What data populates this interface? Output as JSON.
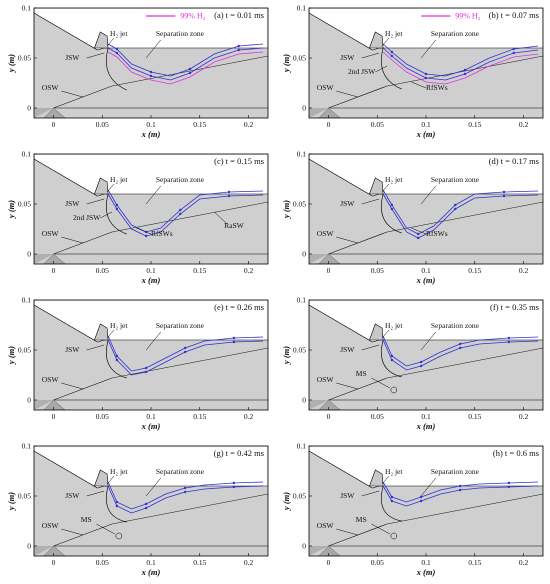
{
  "legend": {
    "label": "99% H₂",
    "color": "#e030e0"
  },
  "axes": {
    "xlabel": "x (m)",
    "ylabel": "y (m)",
    "xticks": [
      "0",
      "0.05",
      "0.1",
      "0.15",
      "0.2"
    ],
    "yticks": [
      "0",
      "0.05",
      "0.1"
    ]
  },
  "colors": {
    "streamline": "#3030d0",
    "shock": "#111111",
    "field": "#cfcfcf",
    "wall": "#b0b0b0"
  },
  "panels": [
    {
      "title": "(a) t = 0.01 ms",
      "show_legend": true,
      "labels": {
        "jet": "H₂ jet",
        "sep": "Separation zone",
        "jsw": "JSW",
        "osw": "OSW"
      },
      "streamline_y": [
        0.06,
        0.055,
        0.04,
        0.032,
        0.028,
        0.035,
        0.05,
        0.058,
        0.06
      ],
      "streamline_x": [
        0.056,
        0.065,
        0.08,
        0.1,
        0.12,
        0.14,
        0.165,
        0.19,
        0.215
      ]
    },
    {
      "title": "(b) t = 0.07 ms",
      "show_legend": true,
      "labels": {
        "jet": "H₂ jet",
        "sep": "Separation zone",
        "jsw": "JSW",
        "jsw2": "2nd JSW",
        "rfsw": "RfSWs",
        "osw": "OSW"
      },
      "streamline_y": [
        0.06,
        0.052,
        0.04,
        0.03,
        0.028,
        0.034,
        0.046,
        0.055,
        0.058
      ],
      "streamline_x": [
        0.056,
        0.065,
        0.08,
        0.1,
        0.12,
        0.14,
        0.165,
        0.19,
        0.215
      ]
    },
    {
      "title": "(c) t = 0.15 ms",
      "show_legend": false,
      "labels": {
        "jet": "H₂ jet",
        "sep": "Separation zone",
        "jsw": "JSW",
        "jsw2": "2nd JSW",
        "rfsw": "RfSWs",
        "rasw": "RaSW",
        "osw": "OSW"
      },
      "streamline_y": [
        0.06,
        0.045,
        0.025,
        0.018,
        0.022,
        0.04,
        0.055,
        0.058,
        0.059
      ],
      "streamline_x": [
        0.056,
        0.065,
        0.08,
        0.095,
        0.11,
        0.13,
        0.15,
        0.18,
        0.215
      ]
    },
    {
      "title": "(d) t = 0.17 ms",
      "show_legend": false,
      "labels": {
        "jet": "H₂ jet",
        "sep": "Separation zone",
        "jsw": "JSW",
        "rfsw": "RfSWs",
        "osw": "OSW"
      },
      "streamline_y": [
        0.06,
        0.045,
        0.022,
        0.016,
        0.024,
        0.045,
        0.056,
        0.058,
        0.059
      ],
      "streamline_x": [
        0.056,
        0.065,
        0.08,
        0.092,
        0.108,
        0.13,
        0.15,
        0.18,
        0.215
      ]
    },
    {
      "title": "(e) t = 0.26 ms",
      "show_legend": false,
      "labels": {
        "jet": "H₂ jet",
        "sep": "Separation zone",
        "jsw": "JSW",
        "osw": "OSW"
      },
      "streamline_y": [
        0.06,
        0.04,
        0.025,
        0.028,
        0.038,
        0.048,
        0.055,
        0.058,
        0.059
      ],
      "streamline_x": [
        0.056,
        0.065,
        0.08,
        0.095,
        0.115,
        0.135,
        0.155,
        0.185,
        0.215
      ]
    },
    {
      "title": "(f) t = 0.35 ms",
      "show_legend": false,
      "labels": {
        "jet": "H₂ jet",
        "sep": "Separation zone",
        "jsw": "JSW",
        "ms": "MS",
        "osw": "OSW"
      },
      "streamline_y": [
        0.06,
        0.04,
        0.03,
        0.034,
        0.044,
        0.052,
        0.056,
        0.058,
        0.059
      ],
      "streamline_x": [
        0.056,
        0.065,
        0.08,
        0.095,
        0.115,
        0.135,
        0.155,
        0.185,
        0.215
      ]
    },
    {
      "title": "(g) t = 0.42 ms",
      "show_legend": false,
      "labels": {
        "jet": "H₂ jet",
        "sep": "Separation zone",
        "jsw": "JSW",
        "ms": "MS",
        "osw": "OSW"
      },
      "streamline_y": [
        0.06,
        0.04,
        0.033,
        0.038,
        0.048,
        0.054,
        0.057,
        0.059,
        0.06
      ],
      "streamline_x": [
        0.056,
        0.065,
        0.08,
        0.095,
        0.115,
        0.135,
        0.155,
        0.185,
        0.215
      ]
    },
    {
      "title": "(h) t = 0.6 ms",
      "show_legend": false,
      "labels": {
        "jet": "H₂ jet",
        "sep": "Separation zone",
        "jsw": "JSW",
        "ms": "MS",
        "osw": "OSW"
      },
      "streamline_y": [
        0.06,
        0.045,
        0.04,
        0.045,
        0.052,
        0.056,
        0.058,
        0.059,
        0.06
      ],
      "streamline_x": [
        0.056,
        0.065,
        0.08,
        0.095,
        0.115,
        0.135,
        0.155,
        0.185,
        0.215
      ]
    }
  ]
}
